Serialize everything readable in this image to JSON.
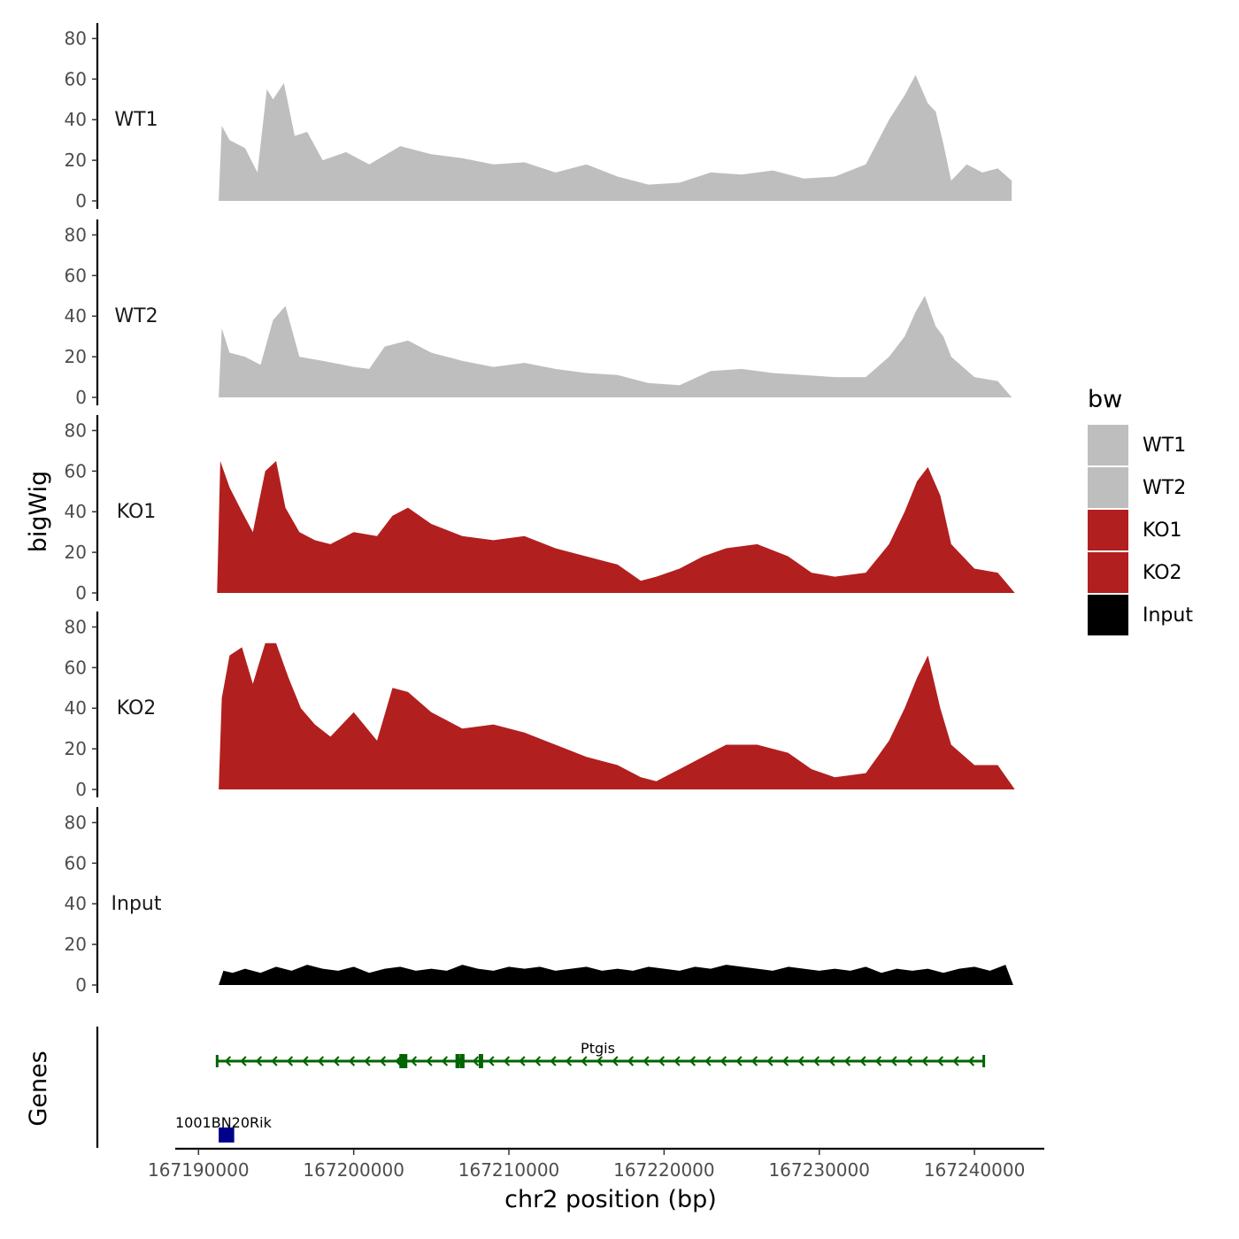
{
  "chart_data": {
    "type": "area",
    "title": "",
    "ylabel": "bigWig",
    "genes_label": "Genes",
    "xlabel": "chr2 position (bp)",
    "xlim": [
      167188500,
      167244500
    ],
    "ylim": [
      0,
      85
    ],
    "y_ticks": [
      0,
      20,
      40,
      60,
      80
    ],
    "y_tick_labels": [
      "0",
      "20",
      "40",
      "60",
      "80"
    ],
    "x_ticks": [
      167190000,
      167200000,
      167210000,
      167220000,
      167230000,
      167240000
    ],
    "x_tick_labels": [
      "167190000",
      "167200000",
      "167210000",
      "167220000",
      "167230000",
      "167240000"
    ],
    "legend": {
      "title": "bw",
      "position": "right",
      "entries": [
        {
          "label": "WT1",
          "color": "#bebebe"
        },
        {
          "label": "WT2",
          "color": "#bebebe"
        },
        {
          "label": "KO1",
          "color": "#b21f1f"
        },
        {
          "label": "KO2",
          "color": "#b21f1f"
        },
        {
          "label": "Input",
          "color": "#000000"
        }
      ]
    },
    "series": [
      {
        "name": "WT1",
        "color": "#bebebe",
        "x": [
          167191300,
          167191500,
          167192000,
          167193000,
          167193800,
          167194400,
          167194800,
          167195500,
          167196200,
          167197000,
          167198000,
          167199500,
          167201000,
          167203000,
          167205000,
          167207000,
          167209000,
          167211000,
          167213000,
          167215000,
          167217000,
          167219000,
          167221000,
          167223000,
          167225000,
          167227000,
          167229000,
          167231000,
          167233000,
          167234500,
          167235500,
          167236200,
          167237000,
          167237500,
          167238000,
          167238500,
          167239500,
          167240500,
          167241500,
          167242400
        ],
        "values": [
          0,
          37,
          30,
          26,
          14,
          55,
          50,
          58,
          32,
          34,
          20,
          24,
          18,
          27,
          23,
          21,
          18,
          19,
          14,
          18,
          12,
          8,
          9,
          14,
          13,
          15,
          11,
          12,
          18,
          40,
          52,
          62,
          48,
          44,
          28,
          10,
          18,
          14,
          16,
          10
        ]
      },
      {
        "name": "WT2",
        "color": "#bebebe",
        "x": [
          167191300,
          167191500,
          167192000,
          167193000,
          167194000,
          167194800,
          167195600,
          167196500,
          167198000,
          167200000,
          167201000,
          167202000,
          167203500,
          167205000,
          167207000,
          167209000,
          167211000,
          167213000,
          167215000,
          167217000,
          167219000,
          167221000,
          167223000,
          167225000,
          167227000,
          167229000,
          167231000,
          167233000,
          167234500,
          167235500,
          167236200,
          167236800,
          167237500,
          167238000,
          167238500,
          167240000,
          167241500,
          167242400
        ],
        "values": [
          0,
          34,
          22,
          20,
          16,
          38,
          45,
          20,
          18,
          15,
          14,
          25,
          28,
          22,
          18,
          15,
          17,
          14,
          12,
          11,
          7,
          6,
          13,
          14,
          12,
          11,
          10,
          10,
          20,
          30,
          42,
          50,
          35,
          30,
          20,
          10,
          8,
          0
        ]
      },
      {
        "name": "KO1",
        "color": "#b21f1f",
        "x": [
          167191200,
          167191400,
          167192000,
          167192800,
          167193500,
          167194300,
          167195000,
          167195600,
          167196500,
          167197500,
          167198500,
          167200000,
          167201500,
          167202500,
          167203500,
          167205000,
          167207000,
          167209000,
          167211000,
          167213000,
          167215000,
          167217000,
          167218500,
          167219500,
          167221000,
          167222500,
          167224000,
          167226000,
          167228000,
          167229500,
          167231000,
          167233000,
          167234500,
          167235500,
          167236300,
          167237000,
          167237800,
          167238500,
          167240000,
          167241500,
          167242600
        ],
        "values": [
          0,
          65,
          52,
          40,
          30,
          60,
          65,
          42,
          30,
          26,
          24,
          30,
          28,
          38,
          42,
          34,
          28,
          26,
          28,
          22,
          18,
          14,
          6,
          8,
          12,
          18,
          22,
          24,
          18,
          10,
          8,
          10,
          24,
          40,
          55,
          62,
          48,
          24,
          12,
          10,
          0
        ]
      },
      {
        "name": "KO2",
        "color": "#b21f1f",
        "x": [
          167191300,
          167191500,
          167192000,
          167192800,
          167193500,
          167194300,
          167195000,
          167195800,
          167196600,
          167197500,
          167198500,
          167200000,
          167201500,
          167202500,
          167203500,
          167205000,
          167207000,
          167209000,
          167211000,
          167213000,
          167215000,
          167217000,
          167218500,
          167219500,
          167221000,
          167222500,
          167224000,
          167226000,
          167228000,
          167229500,
          167231000,
          167233000,
          167234500,
          167235500,
          167236300,
          167237000,
          167237800,
          167238500,
          167240000,
          167241500,
          167242600
        ],
        "values": [
          0,
          45,
          66,
          70,
          52,
          72,
          72,
          55,
          40,
          32,
          26,
          38,
          24,
          50,
          48,
          38,
          30,
          32,
          28,
          22,
          16,
          12,
          6,
          4,
          10,
          16,
          22,
          22,
          18,
          10,
          6,
          8,
          24,
          40,
          55,
          66,
          40,
          22,
          12,
          12,
          0
        ]
      },
      {
        "name": "Input",
        "color": "#000000",
        "x": [
          167191300,
          167191600,
          167192200,
          167193000,
          167194000,
          167195000,
          167196000,
          167197000,
          167198000,
          167199000,
          167200000,
          167201000,
          167202000,
          167203000,
          167204000,
          167205000,
          167206000,
          167207000,
          167208000,
          167209000,
          167210000,
          167211000,
          167212000,
          167213000,
          167214000,
          167215000,
          167216000,
          167217000,
          167218000,
          167219000,
          167220000,
          167221000,
          167222000,
          167223000,
          167224000,
          167225000,
          167226000,
          167227000,
          167228000,
          167229000,
          167230000,
          167231000,
          167232000,
          167233000,
          167234000,
          167235000,
          167236000,
          167237000,
          167238000,
          167239000,
          167240000,
          167241000,
          167242000,
          167242500
        ],
        "values": [
          0,
          7,
          6,
          8,
          6,
          9,
          7,
          10,
          8,
          7,
          9,
          6,
          8,
          9,
          7,
          8,
          7,
          10,
          8,
          7,
          9,
          8,
          9,
          7,
          8,
          9,
          7,
          8,
          7,
          9,
          8,
          7,
          9,
          8,
          10,
          9,
          8,
          7,
          9,
          8,
          7,
          8,
          7,
          9,
          6,
          8,
          7,
          8,
          6,
          8,
          9,
          7,
          10,
          0
        ]
      }
    ],
    "gene_annotations": [
      {
        "name": "Ptgis",
        "strand": "-",
        "start": 167191200,
        "end": 167240600,
        "color": "#006400",
        "exons": [
          167203200,
          167206700,
          167207000,
          167208200
        ]
      },
      {
        "name": "1001BN20Rik",
        "strand": "+",
        "start": 167191300,
        "end": 167192300,
        "color": "#00008b"
      }
    ]
  }
}
